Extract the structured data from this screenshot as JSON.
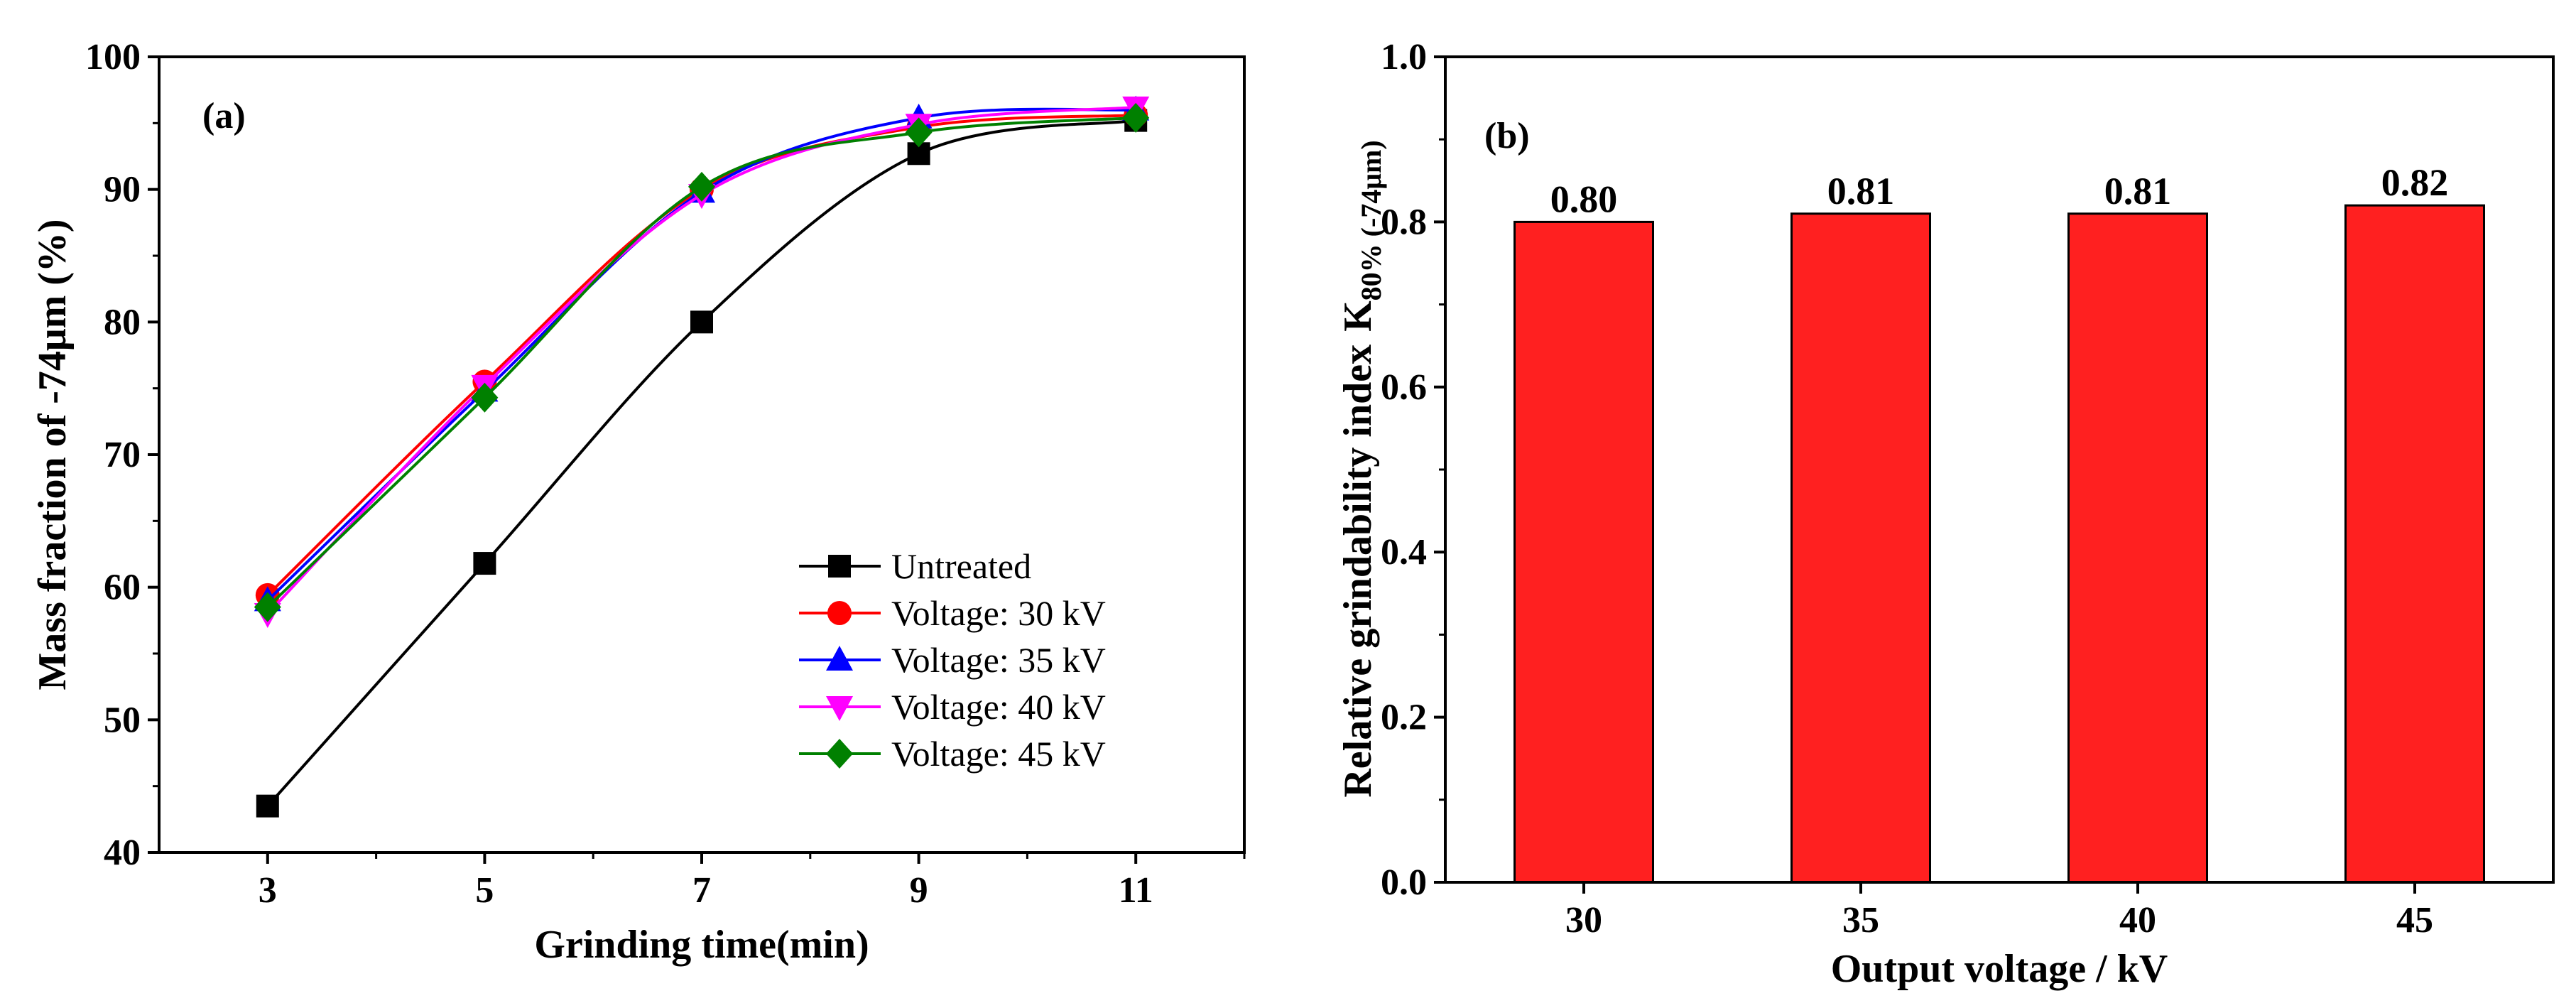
{
  "chart_data": [
    {
      "type": "line",
      "panel_label": "(a)",
      "xlabel": "Grinding time(min)",
      "ylabel": "Mass fraction of -74μm (%)",
      "xlim": [
        2,
        12
      ],
      "ylim": [
        40,
        100
      ],
      "x": [
        3,
        5,
        7,
        9,
        11
      ],
      "xtick_labels": [
        "3",
        "5",
        "7",
        "9",
        "11"
      ],
      "ytick_labels": [
        "40",
        "50",
        "60",
        "70",
        "80",
        "90",
        "100"
      ],
      "grid": false,
      "legend_position": "bottom-right",
      "series": [
        {
          "name": "Untreated",
          "color": "#000000",
          "marker": "square",
          "values": [
            43.5,
            61.8,
            80.0,
            92.7,
            95.2
          ]
        },
        {
          "name": "Voltage: 30 kV",
          "color": "#ff0000",
          "marker": "circle",
          "values": [
            59.4,
            75.5,
            90.0,
            94.7,
            95.6
          ]
        },
        {
          "name": "Voltage: 35 kV",
          "color": "#0000ff",
          "marker": "triangle-up",
          "values": [
            59.0,
            74.8,
            89.8,
            95.4,
            96.0
          ]
        },
        {
          "name": "Voltage: 40 kV",
          "color": "#ff00ff",
          "marker": "triangle-down",
          "values": [
            58.0,
            75.2,
            89.6,
            94.9,
            96.2
          ]
        },
        {
          "name": "Voltage: 45 kV",
          "color": "#008000",
          "marker": "diamond",
          "values": [
            58.5,
            74.3,
            90.2,
            94.3,
            95.4
          ]
        }
      ]
    },
    {
      "type": "bar",
      "panel_label": "(b)",
      "xlabel": "Output voltage / kV",
      "ylabel": "Relative grindability index",
      "ylabel_math": "K",
      "ylabel_sub": "80% (-74μm)",
      "categories": [
        "30",
        "35",
        "40",
        "45"
      ],
      "values": [
        0.8,
        0.81,
        0.81,
        0.82
      ],
      "value_labels": [
        "0.80",
        "0.81",
        "0.81",
        "0.82"
      ],
      "ylim": [
        0.0,
        1.0
      ],
      "ytick_labels": [
        "0.0",
        "0.2",
        "0.4",
        "0.6",
        "0.8",
        "1.0"
      ],
      "bar_color": "#ff2020",
      "grid": false
    }
  ]
}
